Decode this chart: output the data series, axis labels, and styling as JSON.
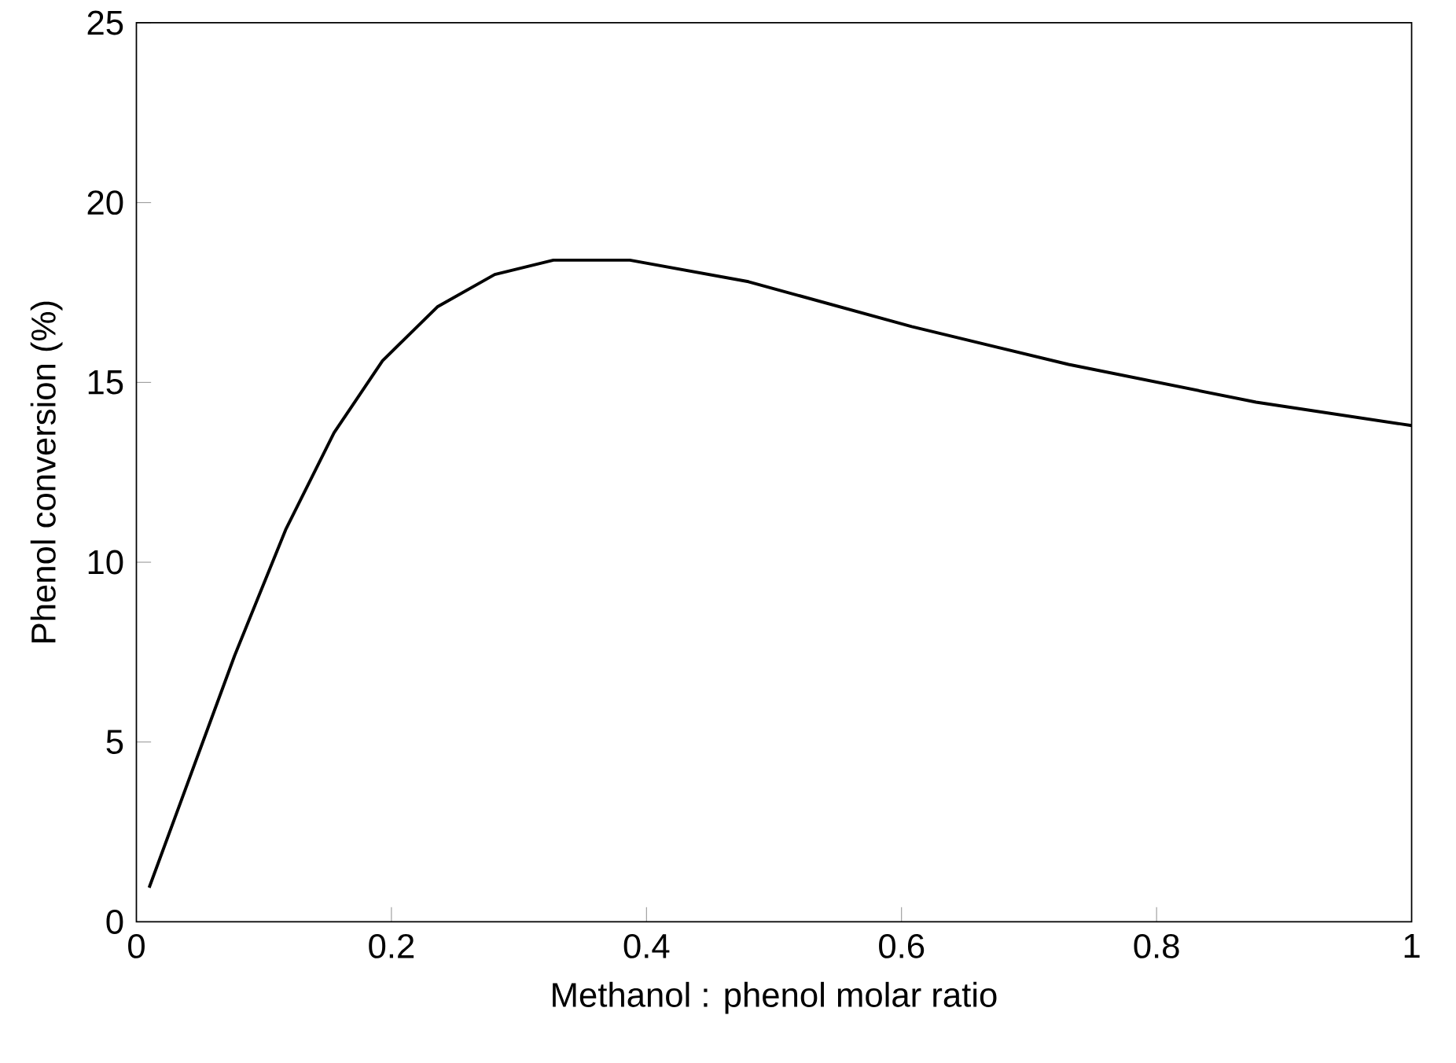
{
  "chart_data": {
    "type": "line",
    "xlabel": "Methanol : phenol molar ratio",
    "ylabel": "Phenol conversion (%)",
    "xlim": [
      0,
      1
    ],
    "ylim": [
      0,
      25
    ],
    "xticks": [
      0,
      0.2,
      0.4,
      0.6,
      0.8,
      1
    ],
    "yticks": [
      0,
      5,
      10,
      15,
      20,
      25
    ],
    "grid": false,
    "marker": "none",
    "line_style": "solid",
    "series": [
      {
        "color": "#000000",
        "x": [
          0.01,
          0.077,
          0.117,
          0.155,
          0.193,
          0.236,
          0.281,
          0.327,
          0.387,
          0.48,
          0.608,
          0.731,
          0.878,
          1.0
        ],
        "values": [
          0.95,
          7.4,
          10.9,
          13.6,
          15.6,
          17.1,
          18.0,
          18.4,
          18.4,
          17.8,
          16.55,
          15.5,
          14.45,
          13.8
        ]
      }
    ]
  }
}
